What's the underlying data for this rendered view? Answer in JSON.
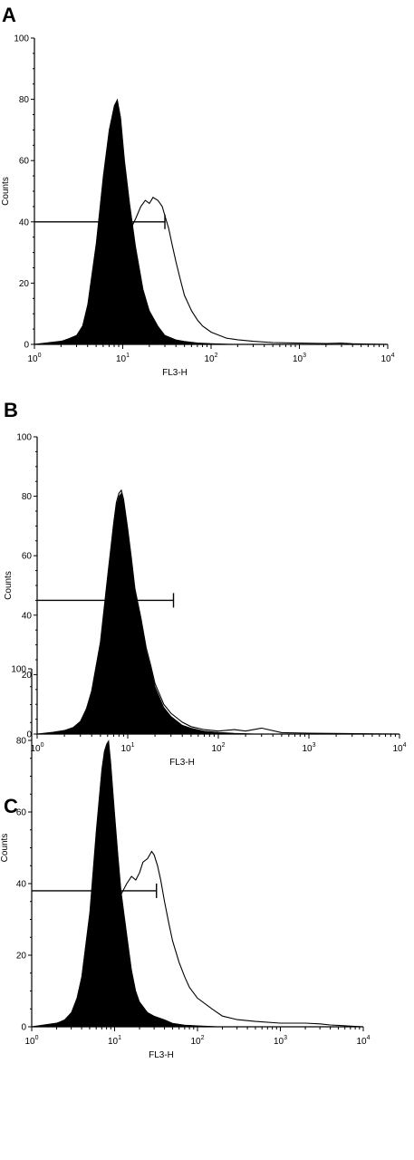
{
  "chart_data": [
    {
      "type": "area",
      "panel": "A",
      "xlabel": "FL3-H",
      "ylabel": "Counts",
      "xscale": "log",
      "xlim": [
        1,
        10000
      ],
      "ylim": [
        0,
        100
      ],
      "xticks": [
        {
          "base": "10",
          "exp": "0"
        },
        {
          "base": "10",
          "exp": "1"
        },
        {
          "base": "10",
          "exp": "2"
        },
        {
          "base": "10",
          "exp": "3"
        },
        {
          "base": "10",
          "exp": "4"
        }
      ],
      "yticks": [
        "0",
        "20",
        "40",
        "60",
        "80",
        "100"
      ],
      "grid": false,
      "marker": {
        "x_start": 1,
        "x_end": 30,
        "y": 40
      },
      "series": [
        {
          "style": "filled",
          "x": [
            1,
            1.5,
            2,
            2.5,
            3,
            3.5,
            4,
            5,
            6,
            7,
            8,
            8.7,
            9.5,
            10.5,
            12,
            14,
            17,
            20,
            25,
            30,
            40,
            50,
            70,
            100,
            200
          ],
          "y": [
            0,
            0.5,
            1,
            2,
            3,
            6,
            13,
            33,
            55,
            70,
            78,
            80,
            74,
            60,
            46,
            32,
            18,
            11,
            6,
            3,
            1.5,
            1,
            0.5,
            0.3,
            0
          ]
        },
        {
          "style": "outline",
          "x": [
            1,
            2,
            3,
            4,
            5,
            6,
            7,
            8,
            9,
            10,
            12,
            14,
            16,
            18,
            20,
            22,
            25,
            28,
            30,
            33,
            36,
            40,
            45,
            50,
            60,
            70,
            80,
            100,
            150,
            200,
            300,
            500,
            1000,
            2000,
            3000,
            4000,
            6000,
            10000
          ],
          "y": [
            0,
            1,
            2,
            5,
            10,
            16,
            22,
            27,
            31,
            34,
            37,
            41,
            45,
            47,
            46,
            48,
            47,
            45,
            42,
            38,
            33,
            27,
            21,
            16,
            11,
            8,
            6,
            4,
            2,
            1.5,
            1,
            0.6,
            0.4,
            0.3,
            0.4,
            0.2,
            0.1,
            0
          ]
        }
      ]
    },
    {
      "type": "area",
      "panel": "B",
      "xlabel": "FL3-H",
      "ylabel": "Counts",
      "xscale": "log",
      "xlim": [
        1,
        10000
      ],
      "ylim": [
        0,
        100
      ],
      "xticks": [
        {
          "base": "10",
          "exp": "0"
        },
        {
          "base": "10",
          "exp": "1"
        },
        {
          "base": "10",
          "exp": "2"
        },
        {
          "base": "10",
          "exp": "3"
        },
        {
          "base": "10",
          "exp": "4"
        }
      ],
      "yticks": [
        "0",
        "20",
        "40",
        "60",
        "80",
        "100"
      ],
      "grid": false,
      "marker": {
        "x_start": 1,
        "x_end": 32,
        "y": 45
      },
      "series": [
        {
          "style": "filled",
          "x": [
            1,
            1.5,
            2,
            2.5,
            3,
            3.5,
            4,
            5,
            6,
            7,
            7.5,
            8,
            8.5,
            9,
            10,
            11,
            12,
            14,
            16,
            18,
            20,
            25,
            30,
            40,
            50,
            70,
            100,
            150,
            300
          ],
          "y": [
            0,
            0.5,
            1,
            2,
            4,
            8,
            14,
            30,
            52,
            70,
            77,
            80,
            81,
            78,
            68,
            58,
            48,
            38,
            28,
            22,
            16,
            9,
            6,
            3,
            2,
            1,
            0.6,
            0.3,
            0
          ]
        },
        {
          "style": "outline",
          "x": [
            1,
            1.5,
            2,
            2.5,
            3,
            3.5,
            4,
            5,
            6,
            7,
            7.5,
            8,
            8.5,
            9,
            10,
            11,
            12,
            14,
            16,
            18,
            20,
            25,
            30,
            40,
            50,
            70,
            100,
            150,
            200,
            300,
            500,
            1000,
            10000
          ],
          "y": [
            0,
            0.6,
            1.2,
            2.2,
            4.2,
            8.5,
            14.5,
            31,
            53,
            71,
            78,
            81,
            82,
            79,
            69,
            59,
            49,
            39,
            29,
            23,
            17,
            10,
            7,
            4,
            2.5,
            1.5,
            1,
            1.5,
            1,
            2,
            0.5,
            0.3,
            0
          ]
        }
      ]
    },
    {
      "type": "area",
      "panel": "C",
      "xlabel": "FL3-H",
      "ylabel": "Counts",
      "xscale": "log",
      "xlim": [
        1,
        10000
      ],
      "ylim": [
        0,
        100
      ],
      "xticks": [
        {
          "base": "10",
          "exp": "0"
        },
        {
          "base": "10",
          "exp": "1"
        },
        {
          "base": "10",
          "exp": "2"
        },
        {
          "base": "10",
          "exp": "3"
        },
        {
          "base": "10",
          "exp": "4"
        }
      ],
      "yticks": [
        "0",
        "20",
        "40",
        "60",
        "80",
        "100"
      ],
      "grid": false,
      "marker": {
        "x_start": 1,
        "x_end": 32,
        "y": 38
      },
      "series": [
        {
          "style": "filled",
          "x": [
            1,
            1.5,
            2,
            2.5,
            3,
            3.5,
            4,
            5,
            6,
            7,
            7.5,
            8,
            8.5,
            9,
            10,
            11,
            12,
            14,
            16,
            18,
            20,
            25,
            30,
            40,
            50,
            70,
            100,
            200
          ],
          "y": [
            0,
            0.5,
            1,
            2,
            4,
            8,
            14,
            32,
            55,
            72,
            77,
            79,
            80,
            74,
            60,
            48,
            38,
            26,
            16,
            10,
            7,
            4,
            3,
            2,
            1,
            0.5,
            0.3,
            0
          ]
        },
        {
          "style": "outline",
          "x": [
            1,
            2,
            3,
            4,
            5,
            6,
            7,
            8,
            9,
            10,
            12,
            14,
            16,
            18,
            20,
            22,
            25,
            28,
            30,
            33,
            36,
            40,
            45,
            50,
            60,
            70,
            80,
            100,
            150,
            200,
            300,
            500,
            1000,
            2000,
            3000,
            4000,
            10000
          ],
          "y": [
            0,
            1,
            2,
            5,
            10,
            16,
            22,
            27,
            31,
            34,
            37,
            40,
            42,
            41,
            43,
            46,
            47,
            49,
            48,
            45,
            41,
            35,
            29,
            24,
            18,
            14,
            11,
            8,
            5,
            3,
            2,
            1.5,
            1,
            1,
            0.8,
            0.5,
            0
          ]
        }
      ]
    }
  ]
}
